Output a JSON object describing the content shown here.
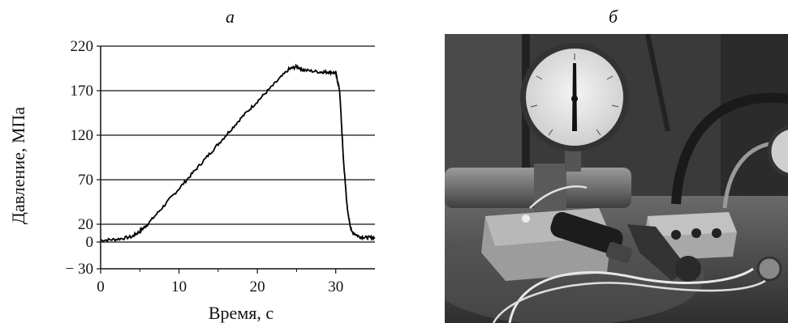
{
  "figure": {
    "panel_a_label": "а",
    "panel_b_label": "б"
  },
  "chart_data": {
    "type": "line",
    "title": "",
    "xlabel": "Время, с",
    "ylabel": "Давление, МПа",
    "xlim": [
      0,
      35
    ],
    "ylim": [
      -30,
      220
    ],
    "xticks": [
      0,
      10,
      20,
      30
    ],
    "yticks": [
      -30,
      0,
      20,
      70,
      120,
      170,
      220
    ],
    "ytick_labels": [
      "− 30",
      "0",
      "20",
      "70",
      "120",
      "170",
      "220"
    ],
    "grid": "horizontal",
    "series": [
      {
        "x": [
          0,
          2,
          4,
          5,
          6,
          8,
          10,
          12,
          14,
          16,
          18,
          20,
          22,
          24,
          25,
          26,
          28,
          29,
          30,
          30.5,
          31,
          31.5,
          32,
          33,
          34,
          35
        ],
        "y": [
          2,
          3,
          6,
          12,
          20,
          40,
          60,
          80,
          100,
          120,
          140,
          158,
          176,
          194,
          197,
          193,
          191,
          191,
          190,
          170,
          90,
          35,
          12,
          6,
          5,
          5
        ]
      }
    ]
  },
  "photo": {
    "description_icon": "pressure-test-equipment-photo"
  }
}
